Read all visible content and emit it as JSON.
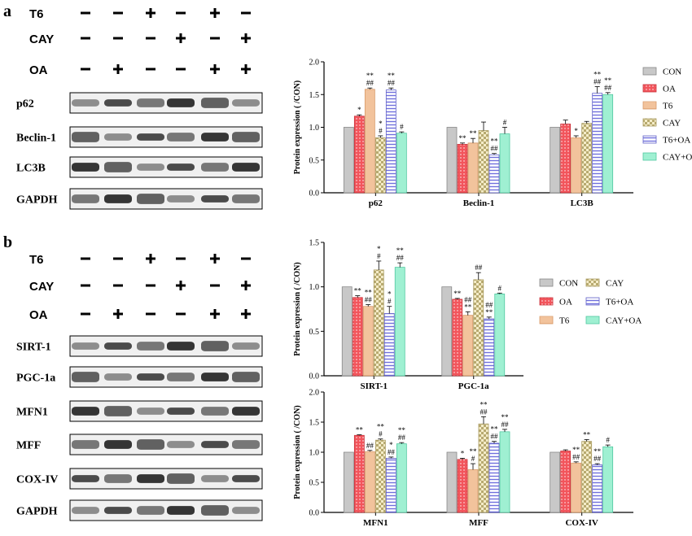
{
  "panel_a": {
    "label": "a",
    "treatments": [
      {
        "name": "T6",
        "signs": [
          "-",
          "-",
          "+",
          "-",
          "+",
          "-"
        ]
      },
      {
        "name": "CAY",
        "signs": [
          "-",
          "-",
          "-",
          "+",
          "-",
          "+"
        ]
      },
      {
        "name": "OA",
        "signs": [
          "-",
          "+",
          "-",
          "-",
          "+",
          "+"
        ]
      }
    ],
    "blots": [
      "p62",
      "Beclin-1",
      "LC3B",
      "GAPDH"
    ]
  },
  "panel_b": {
    "label": "b",
    "treatments": [
      {
        "name": "T6",
        "signs": [
          "-",
          "-",
          "+",
          "-",
          "+",
          "-"
        ]
      },
      {
        "name": "CAY",
        "signs": [
          "-",
          "-",
          "-",
          "+",
          "-",
          "+"
        ]
      },
      {
        "name": "OA",
        "signs": [
          "-",
          "+",
          "-",
          "-",
          "+",
          "+"
        ]
      }
    ],
    "blots": [
      "SIRT-1",
      "PGC-1a",
      "MFN1",
      "MFF",
      "COX-IV",
      "GAPDH"
    ]
  },
  "colors": {
    "CON": "#c8c8c8",
    "OA": "#f2555c",
    "T6": "#fcd6b4",
    "CAY": "#e6dcaa",
    "T6+OA": "#8c8ce6",
    "CAY+OA": "#9ff0d2"
  },
  "chart_data": [
    {
      "type": "bar",
      "ylabel": "Protein expression ( /CON)",
      "ylim": [
        0,
        2.0
      ],
      "yticks": [
        "0.0",
        "0.5",
        "1.0",
        "1.5",
        "2.0"
      ],
      "categories": [
        "p62",
        "Beclin-1",
        "LC3B"
      ],
      "legend": "right-vertical",
      "series": [
        {
          "name": "CON",
          "values": [
            1.0,
            1.0,
            1.0
          ],
          "errors": [
            0,
            0,
            0
          ],
          "marks": [
            "",
            "",
            ""
          ]
        },
        {
          "name": "OA",
          "values": [
            1.17,
            0.74,
            1.05
          ],
          "errors": [
            0.02,
            0.02,
            0.06
          ],
          "marks": [
            "*",
            "**",
            ""
          ]
        },
        {
          "name": "T6",
          "values": [
            1.58,
            0.76,
            0.84
          ],
          "errors": [
            0.02,
            0.07,
            0.03
          ],
          "marks": [
            "**|##",
            "**",
            "*"
          ]
        },
        {
          "name": "CAY",
          "values": [
            0.84,
            0.95,
            1.06
          ],
          "errors": [
            0.03,
            0.13,
            0.03
          ],
          "marks": [
            "*|#",
            "",
            ""
          ]
        },
        {
          "name": "T6+OA",
          "values": [
            1.57,
            0.58,
            1.52
          ],
          "errors": [
            0.03,
            0.02,
            0.1
          ],
          "marks": [
            "**|##",
            "**|##",
            "**|##"
          ]
        },
        {
          "name": "CAY+OA",
          "values": [
            0.91,
            0.9,
            1.5
          ],
          "errors": [
            0.02,
            0.1,
            0.03
          ],
          "marks": [
            "#",
            "#",
            "**|##"
          ]
        }
      ]
    },
    {
      "type": "bar",
      "ylabel": "Protein expression ( /CON)",
      "ylim": [
        0,
        1.5
      ],
      "yticks": [
        "0.0",
        "0.5",
        "1.0",
        "1.5"
      ],
      "categories": [
        "SIRT-1",
        "PGC-1a"
      ],
      "legend": "right-two-columns",
      "series": [
        {
          "name": "CON",
          "values": [
            1.0,
            1.0
          ],
          "errors": [
            0,
            0
          ],
          "marks": [
            "",
            ""
          ]
        },
        {
          "name": "OA",
          "values": [
            0.88,
            0.86
          ],
          "errors": [
            0.02,
            0.01
          ],
          "marks": [
            "**",
            "**"
          ]
        },
        {
          "name": "T6",
          "values": [
            0.78,
            0.68
          ],
          "errors": [
            0.02,
            0.04
          ],
          "marks": [
            "**|##",
            "##|**"
          ]
        },
        {
          "name": "CAY",
          "values": [
            1.19,
            1.08
          ],
          "errors": [
            0.1,
            0.08
          ],
          "marks": [
            "*|#",
            "##"
          ]
        },
        {
          "name": "T6+OA",
          "values": [
            0.7,
            0.64
          ],
          "errors": [
            0.08,
            0.02
          ],
          "marks": [
            "*|#",
            "##|**"
          ]
        },
        {
          "name": "CAY+OA",
          "values": [
            1.22,
            0.92
          ],
          "errors": [
            0.05,
            0.01
          ],
          "marks": [
            "**|##",
            "#"
          ]
        }
      ]
    },
    {
      "type": "bar",
      "ylabel": "Protein expression ( /CON)",
      "ylim": [
        0,
        2.0
      ],
      "yticks": [
        "0.0",
        "0.5",
        "1.0",
        "1.5",
        "2.0"
      ],
      "categories": [
        "MFN1",
        "MFF",
        "COX-IV"
      ],
      "legend": "none",
      "series": [
        {
          "name": "CON",
          "values": [
            1.0,
            1.0,
            1.0
          ],
          "errors": [
            0,
            0,
            0
          ],
          "marks": [
            "",
            "",
            ""
          ]
        },
        {
          "name": "OA",
          "values": [
            1.28,
            0.88,
            1.02
          ],
          "errors": [
            0.01,
            0.02,
            0.02
          ],
          "marks": [
            "**",
            "*",
            ""
          ]
        },
        {
          "name": "T6",
          "values": [
            1.01,
            0.71,
            0.82
          ],
          "errors": [
            0.02,
            0.1,
            0.02
          ],
          "marks": [
            "##",
            "**|#",
            "**|##"
          ]
        },
        {
          "name": "CAY",
          "values": [
            1.2,
            1.47,
            1.18
          ],
          "errors": [
            0.02,
            0.12,
            0.03
          ],
          "marks": [
            "**|#",
            "**|##",
            "**"
          ]
        },
        {
          "name": "T6+OA",
          "values": [
            0.9,
            1.15,
            0.79
          ],
          "errors": [
            0.02,
            0.03,
            0.02
          ],
          "marks": [
            "*|##",
            "**|##",
            "**|##"
          ]
        },
        {
          "name": "CAY+OA",
          "values": [
            1.14,
            1.34,
            1.09
          ],
          "errors": [
            0.02,
            0.04,
            0.03
          ],
          "marks": [
            "**|##",
            "**|##",
            "#"
          ]
        }
      ]
    }
  ]
}
